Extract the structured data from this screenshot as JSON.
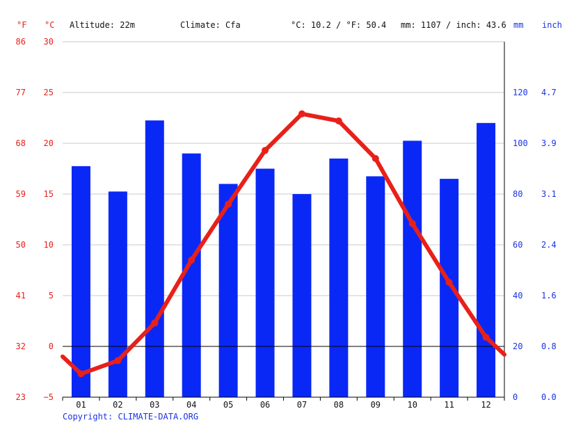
{
  "header": {
    "unit_f": "°F",
    "unit_c": "°C",
    "altitude": "Altitude: 22m",
    "climate": "Climate: Cfa",
    "temp_avg": "°C: 10.2 / °F: 50.4",
    "precip_total": "mm: 1107 / inch: 43.6",
    "unit_mm": "mm",
    "unit_inch": "inch"
  },
  "copyright": "Copyright: CLIMATE-DATA.ORG",
  "colors": {
    "temperature": "#e8201a",
    "precipitation": "#0a28f5",
    "grid": "#c8c8c8",
    "zero_line": "#000000"
  },
  "chart_data": {
    "type": "bar+line",
    "categories": [
      "01",
      "02",
      "03",
      "04",
      "05",
      "06",
      "07",
      "08",
      "09",
      "10",
      "11",
      "12"
    ],
    "series": [
      {
        "name": "",
        "type": "bar",
        "axis": "right-mm",
        "values": [
          91,
          81,
          109,
          96,
          84,
          90,
          80,
          94,
          87,
          101,
          86,
          108
        ]
      },
      {
        "name": "",
        "type": "line",
        "axis": "left-celsius",
        "values": [
          -2.7,
          -1.4,
          2.3,
          8.5,
          14.0,
          19.3,
          22.9,
          22.2,
          18.5,
          12.1,
          6.3,
          0.9
        ],
        "start_value": -1.0,
        "end_value": -0.8
      }
    ],
    "y_left_celsius": {
      "ticks": [
        "30",
        "25",
        "20",
        "15",
        "10",
        "5",
        "0",
        "−5"
      ],
      "range": [
        -5,
        30
      ]
    },
    "y_left_fahrenheit": {
      "ticks": [
        "86",
        "77",
        "68",
        "59",
        "50",
        "41",
        "32",
        "23"
      ]
    },
    "y_right_mm": {
      "ticks": [
        "120",
        "100",
        "80",
        "60",
        "40",
        "20",
        "0"
      ],
      "range": [
        0,
        140
      ]
    },
    "y_right_inch": {
      "ticks": [
        "4.7",
        "3.9",
        "3.1",
        "2.4",
        "1.6",
        "0.8",
        "0.0"
      ]
    },
    "grid": true
  }
}
